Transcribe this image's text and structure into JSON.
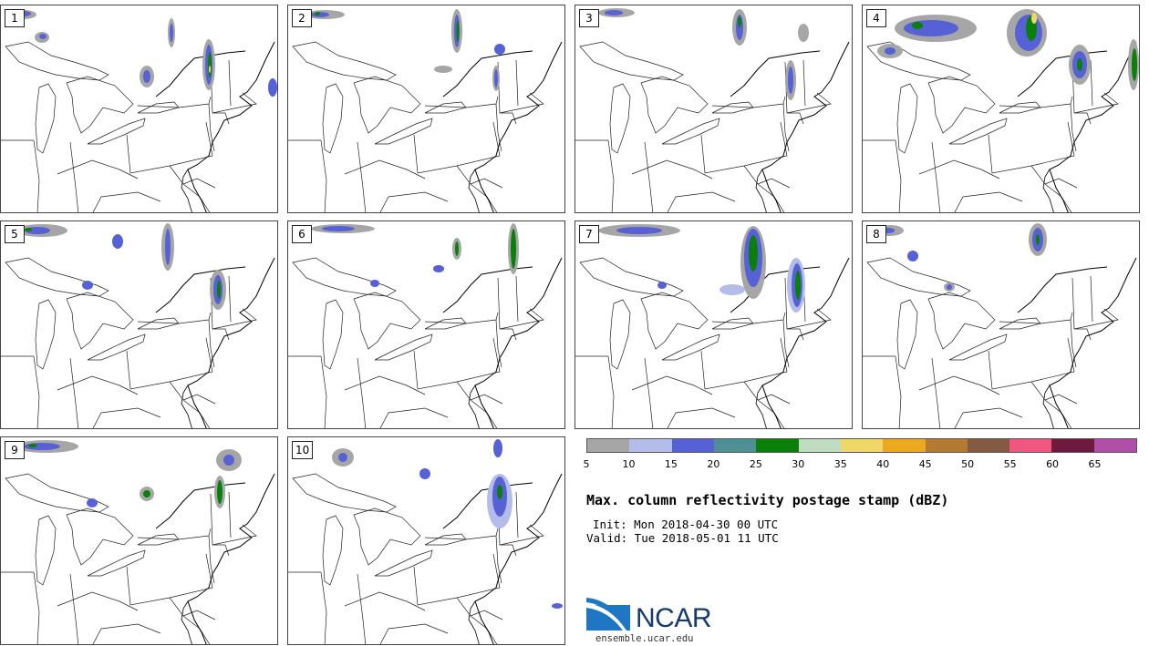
{
  "map": {
    "panels": [
      {
        "label": "1"
      },
      {
        "label": "2"
      },
      {
        "label": "3"
      },
      {
        "label": "4"
      },
      {
        "label": "5"
      },
      {
        "label": "6"
      },
      {
        "label": "7"
      },
      {
        "label": "8"
      },
      {
        "label": "9"
      },
      {
        "label": "10"
      }
    ],
    "basemap": "Great Lakes / Northeast US with state borders"
  },
  "colorbar": {
    "colors": [
      "#a6a6a6",
      "#b4bde9",
      "#5761d6",
      "#4f9097",
      "#0a7f0a",
      "#bfdcc0",
      "#efd768",
      "#eaa91f",
      "#b57a32",
      "#855a43",
      "#ef5680",
      "#6e1a3e",
      "#b04fa8"
    ],
    "ticks": [
      "5",
      "10",
      "15",
      "20",
      "25",
      "30",
      "35",
      "40",
      "45",
      "50",
      "55",
      "60",
      "65"
    ]
  },
  "title": "Max. column reflectivity postage stamp (dBZ)",
  "init": "Init: Mon 2018-04-30 00 UTC",
  "valid": "Valid: Tue 2018-05-01 11 UTC",
  "logo": {
    "text": "NCAR",
    "site": "ensemble.ucar.edu"
  }
}
